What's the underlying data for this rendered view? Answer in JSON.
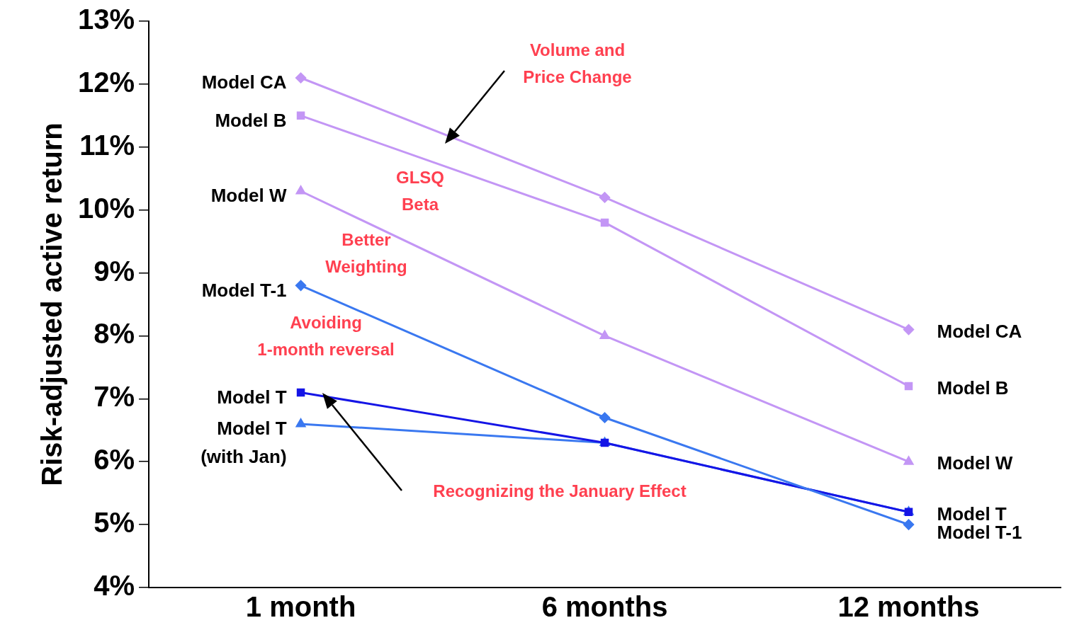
{
  "chart_data": {
    "type": "line",
    "ylabel": "Risk-adjusted active return",
    "categories": [
      "1 month",
      "6 months",
      "12 months"
    ],
    "ylim": [
      4,
      13
    ],
    "yticks": [
      {
        "value": 4,
        "label": "4%"
      },
      {
        "value": 5,
        "label": "5%"
      },
      {
        "value": 6,
        "label": "6%"
      },
      {
        "value": 7,
        "label": "7%"
      },
      {
        "value": 8,
        "label": "8%"
      },
      {
        "value": 9,
        "label": "9%"
      },
      {
        "value": 10,
        "label": "10%"
      },
      {
        "value": 11,
        "label": "11%"
      },
      {
        "value": 12,
        "label": "12%"
      },
      {
        "value": 13,
        "label": "13%"
      }
    ],
    "grid": false,
    "legend": false,
    "line_style": "solid",
    "series": [
      {
        "name": "Model CA",
        "color": "#c396f5",
        "marker": "diamond",
        "values": [
          12.1,
          10.2,
          8.1
        ]
      },
      {
        "name": "Model B",
        "color": "#c396f5",
        "marker": "square",
        "values": [
          11.5,
          9.8,
          7.2
        ]
      },
      {
        "name": "Model W",
        "color": "#c396f5",
        "marker": "triangle",
        "values": [
          10.3,
          8.0,
          6.0
        ]
      },
      {
        "name": "Model T-1",
        "color": "#3a78f0",
        "marker": "diamond",
        "values": [
          8.8,
          6.7,
          5.0
        ]
      },
      {
        "name": "Model T",
        "color": "#1515e6",
        "marker": "square",
        "values": [
          7.1,
          6.3,
          5.2
        ]
      },
      {
        "name": "Model T (with Jan)",
        "color": "#3a78f0",
        "marker": "triangle",
        "values": [
          6.6,
          6.3,
          5.2
        ]
      }
    ],
    "annotations": [
      "Volume and Price Change",
      "GLSQ Beta",
      "Better Weighting",
      "Avoiding 1-month reversal",
      "Recognizing the January Effect",
      {
        "text": "Model CA",
        "x": "12 months",
        "y": 8.1
      },
      {
        "text": "Model B",
        "x": "12 months",
        "y": 7.2
      },
      {
        "text": "Model W",
        "x": "12 months",
        "y": 6.0
      },
      {
        "text": "Model T",
        "x": "12 months",
        "y": 5.2
      },
      {
        "text": "Model T-1",
        "x": "12 months",
        "y": 4.9
      }
    ]
  }
}
